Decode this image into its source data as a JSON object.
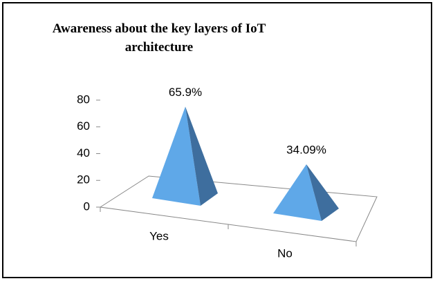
{
  "chart_data": {
    "type": "pyramid3d",
    "title": "Awareness about the key layers of IoT architecture",
    "categories": [
      "Yes",
      "No"
    ],
    "values": [
      65.9,
      34.09
    ],
    "value_labels": [
      "65.9%",
      "34.09%"
    ],
    "color": "#5fa8e8",
    "ylim": [
      0,
      80
    ],
    "yticks": [
      0,
      20,
      40,
      60,
      80
    ],
    "grid": false
  }
}
